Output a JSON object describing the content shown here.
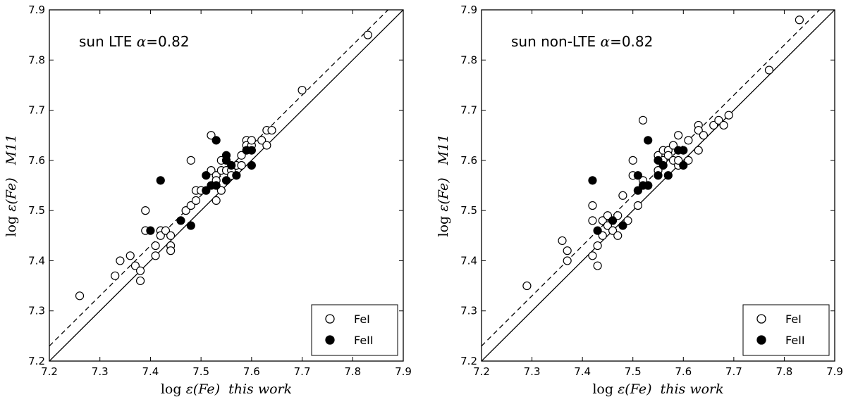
{
  "chart_data": [
    {
      "type": "scatter",
      "title": "",
      "annotation": {
        "text": "sun LTE ",
        "alpha_symbol": "α",
        "alpha_value": "=0.82"
      },
      "xlabel": {
        "prefix": "log ",
        "eps": "ε",
        "fe": "(Fe)",
        "suffix": "this work"
      },
      "ylabel": {
        "prefix": "log ",
        "eps": "ε",
        "fe": "(Fe)",
        "suffix": "M11"
      },
      "xlim": [
        7.2,
        7.9
      ],
      "ylim": [
        7.2,
        7.9
      ],
      "xticks": [
        "7.2",
        "7.3",
        "7.4",
        "7.5",
        "7.6",
        "7.7",
        "7.8",
        "7.9"
      ],
      "yticks": [
        "7.2",
        "7.3",
        "7.4",
        "7.5",
        "7.6",
        "7.7",
        "7.8",
        "7.9"
      ],
      "legend_position": "bottom-right",
      "lines": [
        {
          "name": "one-to-one",
          "style": "solid",
          "offset": 0.0
        },
        {
          "name": "shifted",
          "style": "dashed",
          "offset": 0.03
        }
      ],
      "series": [
        {
          "name": "FeI",
          "marker": "open-circle",
          "points": [
            [
              7.26,
              7.33
            ],
            [
              7.33,
              7.37
            ],
            [
              7.34,
              7.4
            ],
            [
              7.36,
              7.41
            ],
            [
              7.37,
              7.39
            ],
            [
              7.38,
              7.38
            ],
            [
              7.38,
              7.36
            ],
            [
              7.39,
              7.5
            ],
            [
              7.39,
              7.46
            ],
            [
              7.41,
              7.43
            ],
            [
              7.41,
              7.41
            ],
            [
              7.42,
              7.46
            ],
            [
              7.42,
              7.45
            ],
            [
              7.43,
              7.46
            ],
            [
              7.44,
              7.45
            ],
            [
              7.44,
              7.43
            ],
            [
              7.44,
              7.42
            ],
            [
              7.47,
              7.5
            ],
            [
              7.48,
              7.51
            ],
            [
              7.48,
              7.6
            ],
            [
              7.49,
              7.52
            ],
            [
              7.49,
              7.54
            ],
            [
              7.5,
              7.54
            ],
            [
              7.52,
              7.65
            ],
            [
              7.52,
              7.58
            ],
            [
              7.53,
              7.57
            ],
            [
              7.53,
              7.56
            ],
            [
              7.53,
              7.52
            ],
            [
              7.54,
              7.54
            ],
            [
              7.54,
              7.58
            ],
            [
              7.54,
              7.6
            ],
            [
              7.55,
              7.58
            ],
            [
              7.56,
              7.58
            ],
            [
              7.56,
              7.57
            ],
            [
              7.57,
              7.59
            ],
            [
              7.58,
              7.59
            ],
            [
              7.58,
              7.61
            ],
            [
              7.59,
              7.64
            ],
            [
              7.59,
              7.63
            ],
            [
              7.6,
              7.63
            ],
            [
              7.6,
              7.64
            ],
            [
              7.62,
              7.64
            ],
            [
              7.63,
              7.66
            ],
            [
              7.63,
              7.63
            ],
            [
              7.64,
              7.66
            ],
            [
              7.7,
              7.74
            ],
            [
              7.83,
              7.85
            ]
          ]
        },
        {
          "name": "FeII",
          "marker": "filled-circle",
          "points": [
            [
              7.4,
              7.46
            ],
            [
              7.42,
              7.56
            ],
            [
              7.46,
              7.48
            ],
            [
              7.48,
              7.47
            ],
            [
              7.51,
              7.54
            ],
            [
              7.51,
              7.57
            ],
            [
              7.52,
              7.55
            ],
            [
              7.53,
              7.55
            ],
            [
              7.53,
              7.64
            ],
            [
              7.55,
              7.56
            ],
            [
              7.55,
              7.6
            ],
            [
              7.55,
              7.61
            ],
            [
              7.56,
              7.59
            ],
            [
              7.57,
              7.57
            ],
            [
              7.59,
              7.62
            ],
            [
              7.6,
              7.62
            ],
            [
              7.6,
              7.59
            ]
          ]
        }
      ]
    },
    {
      "type": "scatter",
      "title": "",
      "annotation": {
        "text": "sun non-LTE ",
        "alpha_symbol": "α",
        "alpha_value": "=0.82"
      },
      "xlabel": {
        "prefix": "log ",
        "eps": "ε",
        "fe": "(Fe)",
        "suffix": "this work"
      },
      "ylabel": {
        "prefix": "log ",
        "eps": "ε",
        "fe": "(Fe)",
        "suffix": "M11"
      },
      "xlim": [
        7.2,
        7.9
      ],
      "ylim": [
        7.2,
        7.9
      ],
      "xticks": [
        "7.2",
        "7.3",
        "7.4",
        "7.5",
        "7.6",
        "7.7",
        "7.8",
        "7.9"
      ],
      "yticks": [
        "7.2",
        "7.3",
        "7.4",
        "7.5",
        "7.6",
        "7.7",
        "7.8",
        "7.9"
      ],
      "legend_position": "bottom-right",
      "lines": [
        {
          "name": "one-to-one",
          "style": "solid",
          "offset": 0.0
        },
        {
          "name": "shifted",
          "style": "dashed",
          "offset": 0.03
        }
      ],
      "series": [
        {
          "name": "FeI",
          "marker": "open-circle",
          "points": [
            [
              7.29,
              7.35
            ],
            [
              7.36,
              7.44
            ],
            [
              7.37,
              7.42
            ],
            [
              7.37,
              7.4
            ],
            [
              7.42,
              7.51
            ],
            [
              7.42,
              7.48
            ],
            [
              7.42,
              7.41
            ],
            [
              7.43,
              7.39
            ],
            [
              7.43,
              7.43
            ],
            [
              7.44,
              7.45
            ],
            [
              7.44,
              7.48
            ],
            [
              7.45,
              7.47
            ],
            [
              7.45,
              7.49
            ],
            [
              7.46,
              7.46
            ],
            [
              7.47,
              7.45
            ],
            [
              7.47,
              7.49
            ],
            [
              7.48,
              7.53
            ],
            [
              7.49,
              7.48
            ],
            [
              7.5,
              7.57
            ],
            [
              7.5,
              7.6
            ],
            [
              7.51,
              7.51
            ],
            [
              7.52,
              7.56
            ],
            [
              7.52,
              7.68
            ],
            [
              7.53,
              7.55
            ],
            [
              7.55,
              7.61
            ],
            [
              7.55,
              7.58
            ],
            [
              7.56,
              7.62
            ],
            [
              7.56,
              7.6
            ],
            [
              7.57,
              7.62
            ],
            [
              7.57,
              7.61
            ],
            [
              7.58,
              7.63
            ],
            [
              7.58,
              7.6
            ],
            [
              7.59,
              7.59
            ],
            [
              7.59,
              7.65
            ],
            [
              7.59,
              7.6
            ],
            [
              7.61,
              7.64
            ],
            [
              7.61,
              7.6
            ],
            [
              7.63,
              7.67
            ],
            [
              7.63,
              7.66
            ],
            [
              7.63,
              7.62
            ],
            [
              7.64,
              7.65
            ],
            [
              7.66,
              7.67
            ],
            [
              7.67,
              7.68
            ],
            [
              7.68,
              7.67
            ],
            [
              7.69,
              7.69
            ],
            [
              7.77,
              7.78
            ],
            [
              7.83,
              7.88
            ]
          ]
        },
        {
          "name": "FeII",
          "marker": "filled-circle",
          "points": [
            [
              7.42,
              7.56
            ],
            [
              7.43,
              7.46
            ],
            [
              7.46,
              7.48
            ],
            [
              7.48,
              7.47
            ],
            [
              7.51,
              7.54
            ],
            [
              7.51,
              7.57
            ],
            [
              7.52,
              7.55
            ],
            [
              7.53,
              7.55
            ],
            [
              7.53,
              7.64
            ],
            [
              7.55,
              7.57
            ],
            [
              7.55,
              7.6
            ],
            [
              7.56,
              7.59
            ],
            [
              7.57,
              7.57
            ],
            [
              7.59,
              7.62
            ],
            [
              7.6,
              7.62
            ],
            [
              7.6,
              7.59
            ]
          ]
        }
      ]
    }
  ]
}
